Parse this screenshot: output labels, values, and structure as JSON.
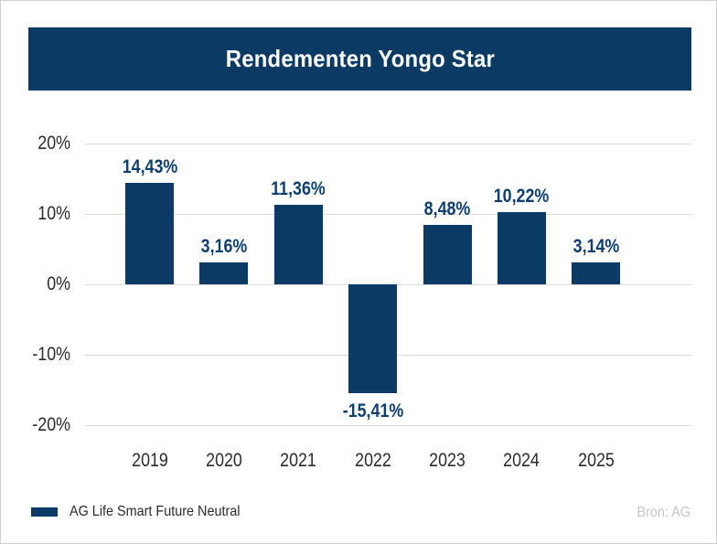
{
  "header": {
    "title": "Rendementen Yongo Star",
    "background_color": "#0b3a64",
    "text_color": "#ffffff"
  },
  "chart_data": {
    "type": "bar",
    "title": "Rendementen Yongo Star",
    "categories": [
      "2019",
      "2020",
      "2021",
      "2022",
      "2023",
      "2024",
      "2025"
    ],
    "values": [
      14.43,
      3.16,
      11.36,
      -15.41,
      8.48,
      10.22,
      3.14
    ],
    "value_labels": [
      "14,43%",
      "3,16%",
      "11,36%",
      "-15,41%",
      "8,48%",
      "10,22%",
      "3,14%"
    ],
    "series": [
      {
        "name": "AG Life Smart Future Neutral",
        "values": [
          14.43,
          3.16,
          11.36,
          -15.41,
          8.48,
          10.22,
          3.14
        ]
      }
    ],
    "xlabel": "",
    "ylabel": "",
    "ylim": [
      -20,
      20
    ],
    "yticks": [
      {
        "value": 20,
        "label": "20%"
      },
      {
        "value": 10,
        "label": "10%"
      },
      {
        "value": 0,
        "label": "0%"
      },
      {
        "value": -10,
        "label": "-10%"
      },
      {
        "value": -20,
        "label": "-20%"
      }
    ],
    "grid": true,
    "legend_position": "bottom-left",
    "bar_color": "#0b3a64",
    "value_label_color": "#0d3f72",
    "axis_text_color": "#2b2b2b",
    "gridline_color": "#dcdcdc"
  },
  "legend": {
    "label": "AG Life Smart Future Neutral",
    "swatch_color": "#0b3a64"
  },
  "footer": {
    "source": "Bron: AG"
  }
}
